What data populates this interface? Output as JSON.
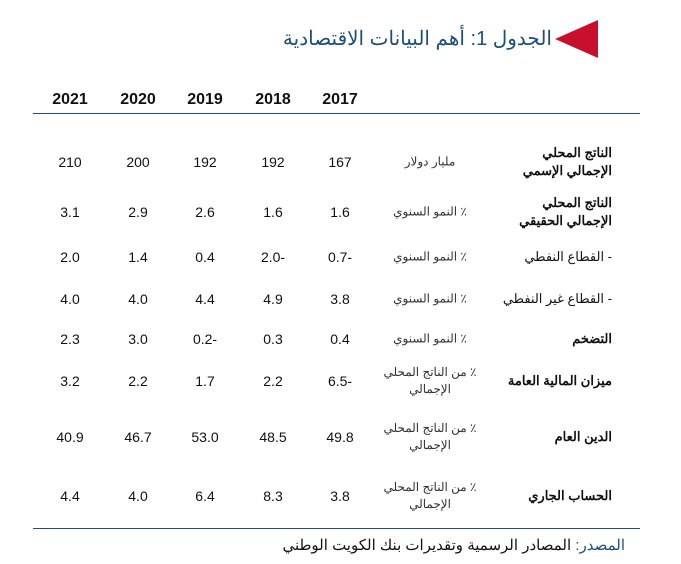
{
  "title": "الجدول 1: أهم البيانات الاقتصادية",
  "accent": "#c8102e",
  "years": [
    "2021",
    "2020",
    "2019",
    "2018",
    "2017"
  ],
  "rows": [
    {
      "label": "الناتج المحلي الإجمالي الإسمي",
      "bold": true,
      "unit": "مليار دولار",
      "values": [
        "210",
        "200",
        "192",
        "192",
        "167"
      ]
    },
    {
      "label": "الناتج المحلي الإجمالي الحقيقي",
      "bold": true,
      "unit": "٪ النمو السنوي",
      "values": [
        "3.1",
        "2.9",
        "2.6",
        "1.6",
        "1.6"
      ]
    },
    {
      "label": "- القطاع النفطي",
      "bold": false,
      "unit": "٪ النمو السنوي",
      "values": [
        "2.0",
        "1.4",
        "0.4",
        "2.0-",
        "0.7-"
      ]
    },
    {
      "label": "- القطاع غير النفطي",
      "bold": false,
      "unit": "٪ النمو السنوي",
      "values": [
        "4.0",
        "4.0",
        "4.4",
        "4.9",
        "3.8"
      ]
    },
    {
      "label": "التضخم",
      "bold": true,
      "unit": "٪ النمو السنوي",
      "values": [
        "2.3",
        "3.0",
        "0.2-",
        "0.3",
        "0.4"
      ]
    },
    {
      "label": "ميزان المالية العامة",
      "bold": true,
      "unit": "٪ من الناتج المحلي الإجمالي",
      "values": [
        "3.2",
        "2.2",
        "1.7",
        "2.2",
        "6.5-"
      ]
    },
    {
      "label": "الدين العام",
      "bold": true,
      "unit": "٪ من الناتج المحلي الإجمالي",
      "values": [
        "40.9",
        "46.7",
        "53.0",
        "48.5",
        "49.8"
      ]
    },
    {
      "label": "الحساب الجاري",
      "bold": true,
      "unit": "٪ من الناتج المحلي الإجمالي",
      "values": [
        "4.4",
        "4.0",
        "6.4",
        "8.3",
        "3.8"
      ]
    }
  ],
  "source": {
    "key": "المصدر:",
    "text": " المصادر الرسمية وتقديرات بنك الكويت الوطني"
  }
}
